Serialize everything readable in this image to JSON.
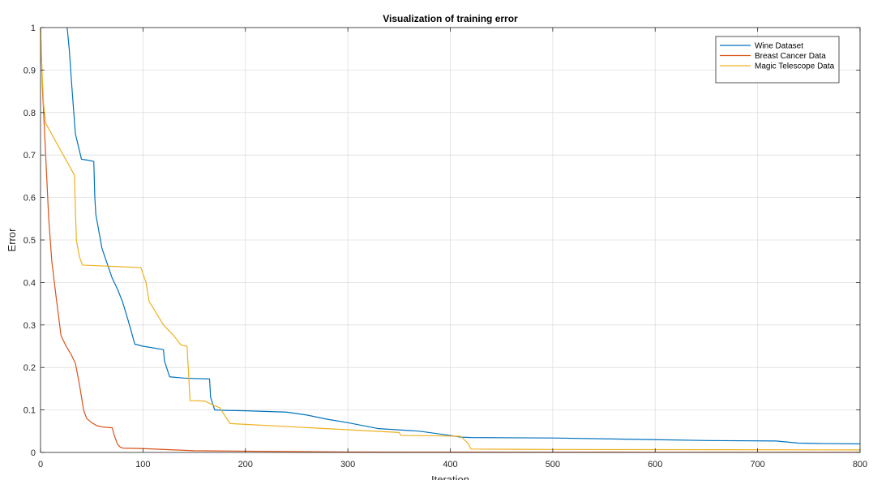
{
  "chart_data": {
    "type": "line",
    "title": "Visualization of training error",
    "xlabel": "Iteration",
    "ylabel": "Error",
    "xlim": [
      0,
      800
    ],
    "ylim": [
      0,
      1
    ],
    "xticks": [
      0,
      100,
      200,
      300,
      400,
      500,
      600,
      700,
      800
    ],
    "yticks": [
      0,
      0.1,
      0.2,
      0.3,
      0.4,
      0.5,
      0.6,
      0.7,
      0.8,
      0.9,
      1
    ],
    "xtick_labels": [
      "0",
      "100",
      "200",
      "300",
      "400",
      "500",
      "600",
      "700",
      "800"
    ],
    "ytick_labels": [
      "0",
      "0.1",
      "0.2",
      "0.3",
      "0.4",
      "0.5",
      "0.6",
      "0.7",
      "0.8",
      "0.9",
      "1"
    ],
    "grid": true,
    "legend_position": "top-right",
    "series": [
      {
        "name": "Wine Dataset",
        "color": "#0072BD",
        "x": [
          26,
          28,
          30,
          34,
          40,
          46,
          52,
          53,
          54,
          60,
          70,
          75,
          80,
          85,
          88,
          92,
          100,
          120,
          121,
          126,
          140,
          150,
          165,
          166,
          170,
          180,
          200,
          240,
          260,
          280,
          300,
          330,
          370,
          400,
          410,
          420,
          500,
          600,
          650,
          718,
          740,
          760,
          800
        ],
        "y": [
          1.0,
          0.95,
          0.88,
          0.75,
          0.69,
          0.688,
          0.685,
          0.6,
          0.56,
          0.48,
          0.41,
          0.385,
          0.355,
          0.315,
          0.29,
          0.255,
          0.25,
          0.242,
          0.215,
          0.178,
          0.175,
          0.174,
          0.173,
          0.13,
          0.1,
          0.099,
          0.098,
          0.095,
          0.088,
          0.078,
          0.07,
          0.056,
          0.05,
          0.04,
          0.036,
          0.035,
          0.034,
          0.03,
          0.028,
          0.027,
          0.022,
          0.021,
          0.02
        ]
      },
      {
        "name": "Breast Cancer Data",
        "color": "#D95319",
        "x": [
          0,
          2,
          5,
          8,
          11,
          15,
          20,
          25,
          30,
          34,
          38,
          42,
          45,
          50,
          55,
          60,
          70,
          72,
          75,
          78,
          81,
          100,
          150,
          200,
          250,
          300,
          400,
          500,
          600,
          700,
          800
        ],
        "y": [
          1.0,
          0.85,
          0.7,
          0.55,
          0.45,
          0.37,
          0.275,
          0.25,
          0.23,
          0.21,
          0.16,
          0.1,
          0.08,
          0.07,
          0.063,
          0.06,
          0.058,
          0.04,
          0.02,
          0.012,
          0.01,
          0.009,
          0.004,
          0.003,
          0.002,
          0.001,
          0.0008,
          0.0005,
          0.0004,
          0.0003,
          0.0002
        ]
      },
      {
        "name": "Magic Telescope Data",
        "color": "#EDB120",
        "x": [
          0,
          1,
          3,
          5,
          33,
          35,
          38,
          41,
          50,
          98,
          103,
          106,
          110,
          120,
          130,
          137,
          143,
          146,
          160,
          170,
          175,
          185,
          350,
          352,
          390,
          410,
          418,
          420,
          500,
          800
        ],
        "y": [
          1.0,
          0.92,
          0.82,
          0.775,
          0.653,
          0.5,
          0.46,
          0.441,
          0.44,
          0.435,
          0.4,
          0.355,
          0.34,
          0.3,
          0.275,
          0.253,
          0.25,
          0.122,
          0.121,
          0.11,
          0.105,
          0.068,
          0.047,
          0.04,
          0.039,
          0.038,
          0.02,
          0.008,
          0.007,
          0.006
        ]
      }
    ]
  }
}
